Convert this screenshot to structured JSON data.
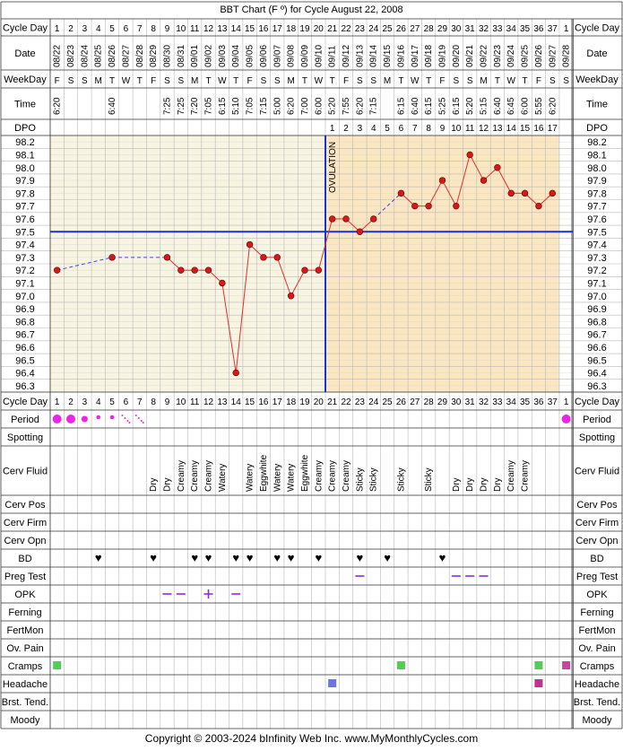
{
  "title": "BBT Chart (F º) for Cycle August 22, 2008",
  "copyright": "Copyright © 2003-2024 bInfinity Web Inc.    www.MyMonthlyCycles.com",
  "ovulation_label": "OVULATION",
  "row_labels": {
    "cycle_day": "Cycle Day",
    "date": "Date",
    "weekday": "WeekDay",
    "time": "Time",
    "dpo": "DPO",
    "period": "Period",
    "spotting": "Spotting",
    "cerv_fluid": "Cerv Fluid",
    "cerv_pos": "Cerv Pos",
    "cerv_firm": "Cerv Firm",
    "cerv_opn": "Cerv Opn",
    "bd": "BD",
    "preg_test": "Preg Test",
    "opk": "OPK",
    "ferning": "Ferning",
    "fertmon": "FertMon",
    "ov_pain": "Ov. Pain",
    "cramps": "Cramps",
    "headache": "Headache",
    "brst_tend": "Brst. Tend.",
    "moody": "Moody"
  },
  "cycle_days": [
    "1",
    "2",
    "3",
    "4",
    "5",
    "6",
    "7",
    "8",
    "9",
    "10",
    "11",
    "12",
    "13",
    "14",
    "15",
    "16",
    "17",
    "18",
    "19",
    "20",
    "21",
    "22",
    "23",
    "24",
    "25",
    "26",
    "27",
    "28",
    "29",
    "30",
    "31",
    "32",
    "33",
    "34",
    "35",
    "36",
    "37",
    "1"
  ],
  "dates": [
    "08/22",
    "08/23",
    "08/24",
    "08/25",
    "08/26",
    "08/27",
    "08/28",
    "08/29",
    "08/30",
    "08/31",
    "09/01",
    "09/02",
    "09/03",
    "09/04",
    "09/05",
    "09/06",
    "09/07",
    "09/08",
    "09/09",
    "09/10",
    "09/11",
    "09/12",
    "09/13",
    "09/14",
    "09/15",
    "09/16",
    "09/17",
    "09/18",
    "09/19",
    "09/20",
    "09/21",
    "09/22",
    "09/23",
    "09/24",
    "09/25",
    "09/26",
    "09/27",
    "09/28"
  ],
  "weekdays": [
    "F",
    "S",
    "S",
    "M",
    "T",
    "W",
    "T",
    "F",
    "S",
    "S",
    "M",
    "T",
    "W",
    "T",
    "F",
    "S",
    "S",
    "M",
    "T",
    "W",
    "T",
    "F",
    "S",
    "S",
    "M",
    "T",
    "W",
    "T",
    "F",
    "S",
    "S",
    "M",
    "T",
    "W",
    "T",
    "F",
    "S",
    "S"
  ],
  "times": [
    "6:20",
    "",
    "",
    "",
    "6:40",
    "",
    "",
    "",
    "7:25",
    "7:25",
    "7:20",
    "7:05",
    "6:15",
    "5:10",
    "7:05",
    "7:15",
    "5:00",
    "6:20",
    "7:00",
    "6:00",
    "5:20",
    "7:55",
    "6:20",
    "7:15",
    "",
    "6:15",
    "6:40",
    "6:15",
    "5:25",
    "6:15",
    "5:20",
    "5:15",
    "6:40",
    "6:45",
    "6:00",
    "5:55",
    "6:20",
    ""
  ],
  "dpo": [
    "",
    "",
    "",
    "",
    "",
    "",
    "",
    "",
    "",
    "",
    "",
    "",
    "",
    "",
    "",
    "",
    "",
    "",
    "",
    "",
    "1",
    "2",
    "3",
    "4",
    "5",
    "6",
    "7",
    "8",
    "9",
    "10",
    "11",
    "12",
    "13",
    "14",
    "15",
    "16",
    "17",
    ""
  ],
  "period": [
    "heavy",
    "heavy",
    "medium",
    "light",
    "light",
    "spotting-dots",
    "spotting-dots",
    "",
    "",
    "",
    "",
    "",
    "",
    "",
    "",
    "",
    "",
    "",
    "",
    "",
    "",
    "",
    "",
    "",
    "",
    "",
    "",
    "",
    "",
    "",
    "",
    "",
    "",
    "",
    "",
    "",
    "",
    "heavy"
  ],
  "cerv_fluid": [
    "",
    "",
    "",
    "",
    "",
    "",
    "",
    "Dry",
    "Dry",
    "Creamy",
    "Creamy",
    "Creamy",
    "Watery",
    "",
    "Watery",
    "Eggwhite",
    "Watery",
    "Watery",
    "Eggwhite",
    "Creamy",
    "Creamy",
    "Creamy",
    "Sticky",
    "Sticky",
    "",
    "Sticky",
    "",
    "Sticky",
    "",
    "Dry",
    "Dry",
    "Dry",
    "Dry",
    "Creamy",
    "Creamy",
    "",
    "",
    ""
  ],
  "bd": [
    false,
    false,
    false,
    true,
    false,
    false,
    false,
    true,
    false,
    false,
    true,
    true,
    false,
    true,
    true,
    false,
    true,
    true,
    false,
    true,
    false,
    false,
    true,
    false,
    true,
    false,
    false,
    false,
    true,
    false,
    false,
    false,
    false,
    false,
    false,
    false,
    false,
    false
  ],
  "preg_test": [
    "",
    "",
    "",
    "",
    "",
    "",
    "",
    "",
    "",
    "",
    "",
    "",
    "",
    "",
    "",
    "",
    "",
    "",
    "",
    "",
    "",
    "",
    "neg",
    "",
    "",
    "",
    "",
    "",
    "",
    "neg",
    "neg",
    "neg",
    "",
    "",
    "",
    "",
    "",
    ""
  ],
  "opk": [
    "",
    "",
    "",
    "",
    "",
    "",
    "",
    "",
    "neg",
    "neg",
    "",
    "pos",
    "",
    "neg",
    "",
    "",
    "",
    "",
    "",
    "",
    "",
    "",
    "",
    "",
    "",
    "",
    "",
    "",
    "",
    "",
    "",
    "",
    "",
    "",
    "",
    "",
    "",
    ""
  ],
  "cramps": [
    true,
    false,
    false,
    false,
    false,
    false,
    false,
    false,
    false,
    false,
    false,
    false,
    false,
    false,
    false,
    false,
    false,
    false,
    false,
    false,
    false,
    false,
    false,
    false,
    false,
    true,
    false,
    false,
    false,
    false,
    false,
    false,
    false,
    false,
    false,
    true,
    false,
    true
  ],
  "headache": [
    false,
    false,
    false,
    false,
    false,
    false,
    false,
    false,
    false,
    false,
    false,
    false,
    false,
    false,
    false,
    false,
    false,
    false,
    false,
    false,
    true,
    false,
    false,
    false,
    false,
    false,
    false,
    false,
    false,
    false,
    false,
    false,
    false,
    false,
    false,
    true,
    false,
    false
  ],
  "colors": {
    "follicular_bg": "#f7f4e2",
    "luteal_bg": "#fbe6c2",
    "grid": "#b8b8b8",
    "coverline": "#1a33cc",
    "ovulation_line": "#1a33cc",
    "temp_line": "#e03030",
    "temp_point": "#d81818",
    "interp_line": "#3a4adc",
    "period": "#ee22ee",
    "bd_heart": "#d63a7a",
    "test_mark": "#8a2be2",
    "cramps_box": "#55cc55",
    "cramps_box_alt": "#cc4499",
    "headache_box": "#6677dd",
    "headache_box_alt": "#bb3399"
  },
  "chart_data": {
    "type": "line",
    "title": "BBT Chart (F º) for Cycle August 22, 2008",
    "xlabel": "Cycle Day",
    "ylabel": "",
    "x": [
      1,
      2,
      3,
      4,
      5,
      6,
      7,
      8,
      9,
      10,
      11,
      12,
      13,
      14,
      15,
      16,
      17,
      18,
      19,
      20,
      21,
      22,
      23,
      24,
      25,
      26,
      27,
      28,
      29,
      30,
      31,
      32,
      33,
      34,
      35,
      36,
      37
    ],
    "series": [
      {
        "values": [
          97.2,
          null,
          null,
          null,
          97.3,
          null,
          null,
          null,
          97.3,
          97.2,
          97.2,
          97.2,
          97.1,
          96.4,
          97.4,
          97.3,
          97.3,
          97.0,
          97.2,
          97.2,
          97.6,
          97.6,
          97.5,
          97.6,
          null,
          97.8,
          97.7,
          97.7,
          97.9,
          97.7,
          98.1,
          97.9,
          98.0,
          97.8,
          97.8,
          97.7,
          97.8
        ]
      }
    ],
    "ylim": [
      96.3,
      98.2
    ],
    "y_ticks": [
      "98.2",
      "98.1",
      "98.0",
      "97.9",
      "97.8",
      "97.7",
      "97.6",
      "97.5",
      "97.4",
      "97.3",
      "97.2",
      "97.1",
      "97.0",
      "96.9",
      "96.8",
      "96.7",
      "96.6",
      "96.5",
      "96.4",
      "96.3"
    ],
    "coverline": 97.5,
    "ovulation_day": 20,
    "grid": true
  }
}
